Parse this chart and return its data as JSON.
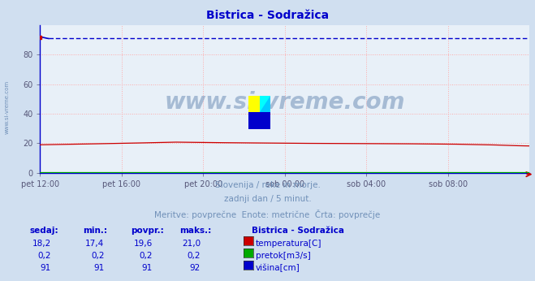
{
  "title": "Bistrica - Sodražica",
  "title_color": "#0000cc",
  "bg_color": "#d0dff0",
  "plot_bg_color": "#e8f0f8",
  "xlabel_ticks": [
    "pet 12:00",
    "pet 16:00",
    "pet 20:00",
    "sob 00:00",
    "sob 04:00",
    "sob 08:00"
  ],
  "ylabel_ticks": [
    0,
    20,
    40,
    60,
    80
  ],
  "ylim": [
    0,
    100
  ],
  "n_points": 289,
  "temp_color": "#cc0000",
  "flow_color": "#00aa00",
  "height_color": "#0000cc",
  "grid_color": "#ffaaaa",
  "watermark_color": "#7090b8",
  "subtitle1": "Slovenija / reke in morje.",
  "subtitle2": "zadnji dan / 5 minut.",
  "subtitle3": "Meritve: povprečne  Enote: metrične  Črta: povprečje",
  "legend_title": "Bistrica - Sodražica",
  "legend_items": [
    "temperatura[C]",
    "pretok[m3/s]",
    "višina[cm]"
  ],
  "legend_colors": [
    "#cc0000",
    "#00aa00",
    "#0000cc"
  ],
  "table_headers": [
    "sedaj:",
    "min.:",
    "povpr.:",
    "maks.:"
  ],
  "table_data": [
    [
      "18,2",
      "17,4",
      "19,6",
      "21,0"
    ],
    [
      "0,2",
      "0,2",
      "0,2",
      "0,2"
    ],
    [
      "91",
      "91",
      "91",
      "92"
    ]
  ],
  "watermark": "www.si-vreme.com",
  "left_label": "www.si-vreme.com",
  "spine_color": "#0000cc",
  "tick_color": "#555577"
}
